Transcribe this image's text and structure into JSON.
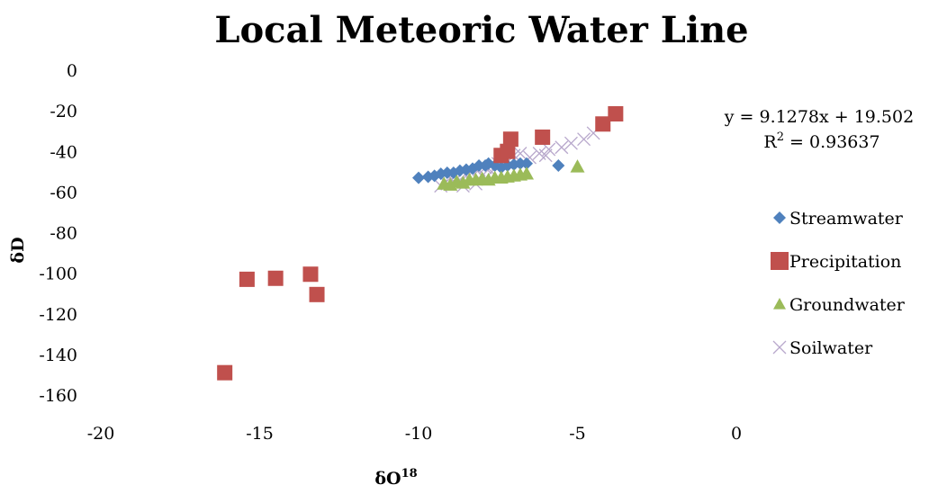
{
  "chart_data": {
    "type": "scatter",
    "title": "Local Meteoric Water Line",
    "xlabel": "δO",
    "xlabel_sup": "18",
    "ylabel": "δD",
    "xlim": [
      -20,
      0
    ],
    "ylim": [
      -160,
      0
    ],
    "x_ticks": [
      "-20",
      "-15",
      "-10",
      "-5",
      "0"
    ],
    "y_ticks": [
      "0",
      "-20",
      "-40",
      "-60",
      "-80",
      "-100",
      "-120",
      "-140",
      "-160"
    ],
    "grid": false,
    "legend_position": "right",
    "trendline": {
      "equation": "y = 9.1278x + 19.502",
      "r2_label": "R",
      "r2_sup": "2",
      "r2_value": " = 0.93637"
    },
    "series": [
      {
        "name": "Streamwater",
        "marker": "diamond",
        "color": "#4f81bd",
        "points": [
          [
            -10.0,
            -53
          ],
          [
            -9.7,
            -52.5
          ],
          [
            -9.5,
            -52
          ],
          [
            -9.3,
            -51
          ],
          [
            -9.1,
            -50.5
          ],
          [
            -8.9,
            -50.5
          ],
          [
            -8.7,
            -49.5
          ],
          [
            -8.5,
            -49
          ],
          [
            -8.3,
            -48.5
          ],
          [
            -8.1,
            -47
          ],
          [
            -7.9,
            -47
          ],
          [
            -7.8,
            -46
          ],
          [
            -7.6,
            -47
          ],
          [
            -7.4,
            -48
          ],
          [
            -7.2,
            -47
          ],
          [
            -7.0,
            -46.5
          ],
          [
            -6.8,
            -46
          ],
          [
            -6.6,
            -46
          ],
          [
            -5.6,
            -47
          ]
        ]
      },
      {
        "name": "Precipitation",
        "marker": "square",
        "color": "#c0504d",
        "points": [
          [
            -16.1,
            -149
          ],
          [
            -15.4,
            -103
          ],
          [
            -14.5,
            -102.5
          ],
          [
            -13.4,
            -100.5
          ],
          [
            -13.2,
            -110.5
          ],
          [
            -7.4,
            -42
          ],
          [
            -7.2,
            -40
          ],
          [
            -7.1,
            -34
          ],
          [
            -6.1,
            -33
          ],
          [
            -4.2,
            -26.5
          ],
          [
            -3.8,
            -21.5
          ]
        ]
      },
      {
        "name": "Groundwater",
        "marker": "triangle",
        "color": "#9bbb59",
        "points": [
          [
            -9.2,
            -56
          ],
          [
            -9.0,
            -56.5
          ],
          [
            -8.8,
            -55
          ],
          [
            -8.6,
            -55.5
          ],
          [
            -8.4,
            -54
          ],
          [
            -8.2,
            -54
          ],
          [
            -8.0,
            -53.5
          ],
          [
            -7.8,
            -54
          ],
          [
            -7.6,
            -53
          ],
          [
            -7.4,
            -53
          ],
          [
            -7.2,
            -52.5
          ],
          [
            -7.0,
            -52
          ],
          [
            -6.8,
            -51.5
          ],
          [
            -6.6,
            -51
          ],
          [
            -5.0,
            -47.5
          ]
        ]
      },
      {
        "name": "Soilwater",
        "marker": "x",
        "color": "#b8a8cc",
        "points": [
          [
            -9.3,
            -57
          ],
          [
            -9.1,
            -56
          ],
          [
            -8.9,
            -55
          ],
          [
            -8.7,
            -54
          ],
          [
            -8.5,
            -52
          ],
          [
            -8.3,
            -50
          ],
          [
            -8.1,
            -49
          ],
          [
            -7.9,
            -48
          ],
          [
            -8.0,
            -52
          ],
          [
            -7.7,
            -50
          ],
          [
            -7.5,
            -46
          ],
          [
            -7.3,
            -44
          ],
          [
            -7.0,
            -42
          ],
          [
            -6.8,
            -41
          ],
          [
            -6.5,
            -43
          ],
          [
            -6.2,
            -41
          ],
          [
            -5.9,
            -39
          ],
          [
            -5.5,
            -38
          ],
          [
            -5.2,
            -36
          ],
          [
            -4.8,
            -34
          ],
          [
            -4.5,
            -31
          ],
          [
            -9.0,
            -53
          ],
          [
            -8.6,
            -57
          ],
          [
            -8.2,
            -56
          ],
          [
            -6.0,
            -42
          ]
        ]
      }
    ]
  }
}
